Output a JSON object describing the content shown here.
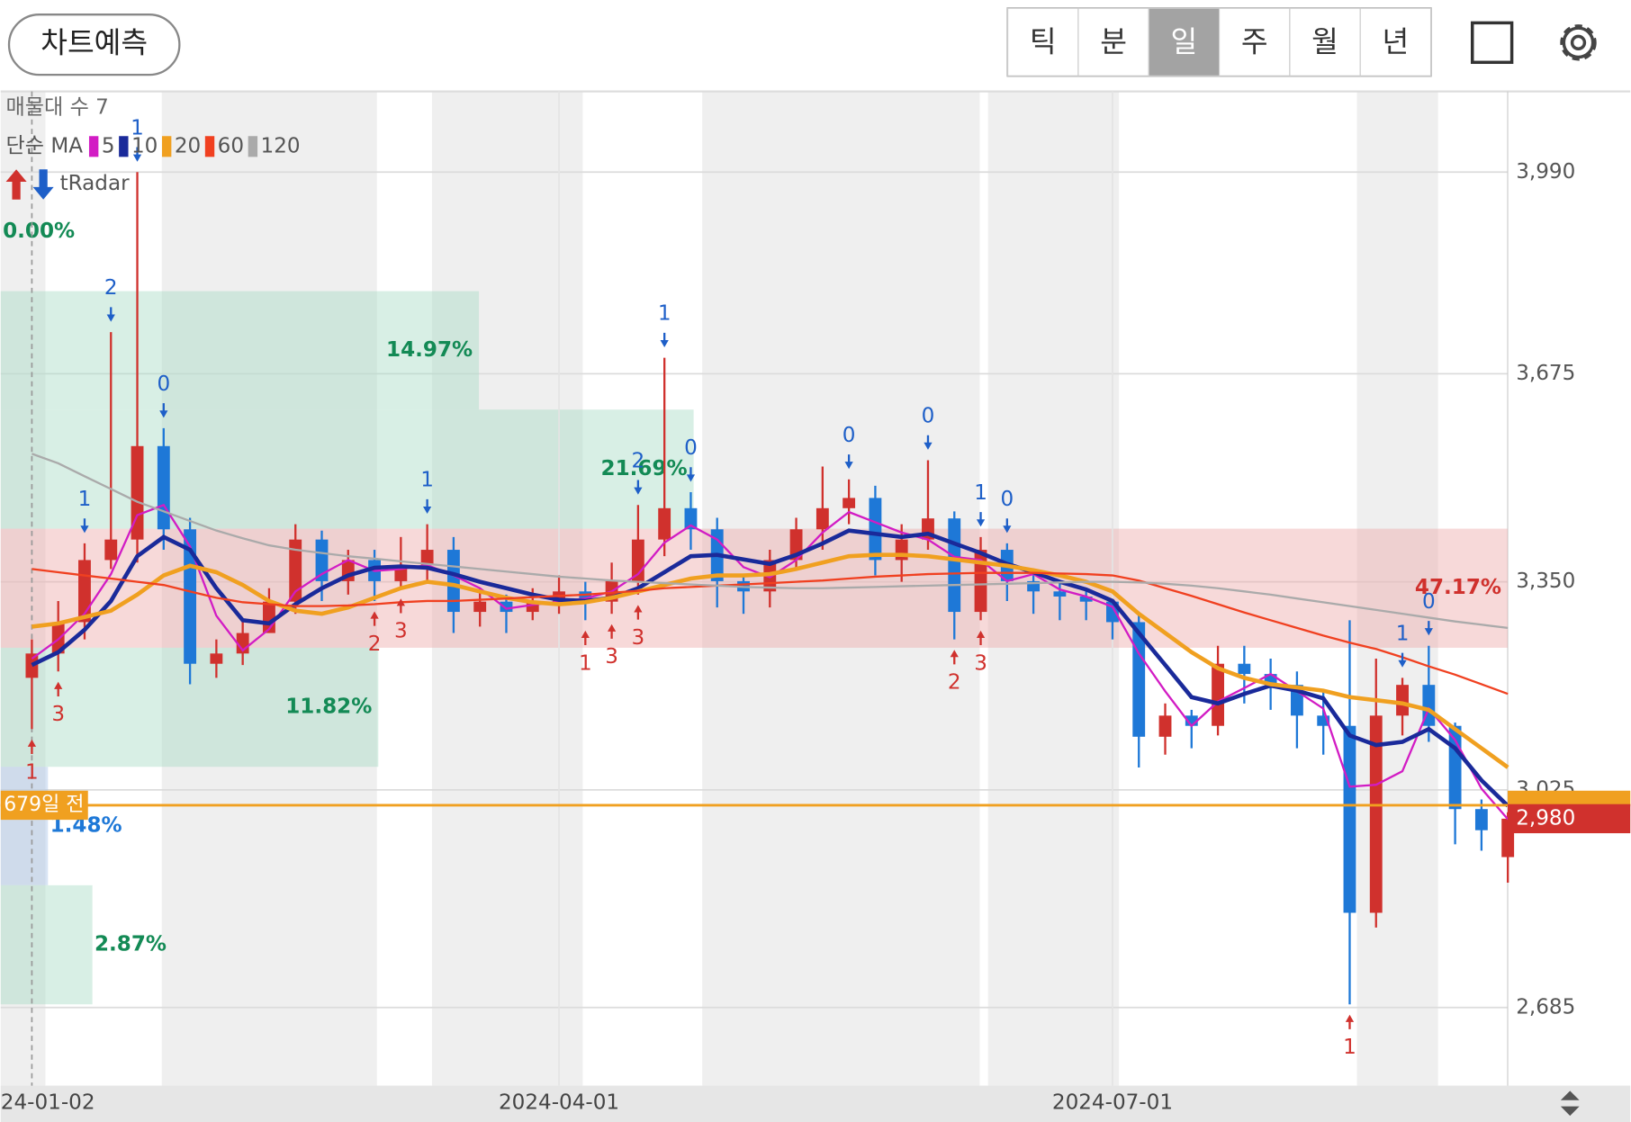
{
  "toolbar": {
    "button": "차트예측",
    "tabs": [
      "틱",
      "분",
      "일",
      "주",
      "월",
      "년"
    ],
    "selected_tab": 2
  },
  "chart_data": {
    "type": "candlestick",
    "categories": [
      "24-01-02",
      null,
      null,
      null,
      null,
      null,
      null,
      null,
      null,
      null,
      null,
      null,
      null,
      null,
      null,
      null,
      null,
      null,
      null,
      null,
      "2024-04-01",
      null,
      null,
      null,
      null,
      null,
      null,
      null,
      null,
      null,
      null,
      null,
      null,
      null,
      null,
      null,
      null,
      null,
      null,
      null,
      null,
      "2024-07-01",
      null,
      null,
      null,
      null,
      null,
      null,
      null,
      null,
      null,
      null,
      null,
      null,
      null,
      null,
      null
    ],
    "open": [
      3200,
      3238,
      3287,
      3384,
      3416,
      3562,
      3432,
      3222,
      3238,
      3270,
      3319,
      3416,
      3351,
      3384,
      3351,
      3376,
      3400,
      3303,
      3319,
      3303,
      3319,
      3335,
      3319,
      3351,
      3416,
      3465,
      3432,
      3351,
      3335,
      3384,
      3432,
      3465,
      3481,
      3384,
      3416,
      3449,
      3303,
      3400,
      3351,
      3335,
      3327,
      3319,
      3287,
      3108,
      3141,
      3125,
      3222,
      3206,
      3189,
      3141,
      3125,
      2833,
      3141,
      3189,
      3125,
      2995,
      2920
    ],
    "high": [
      3260,
      3320,
      3410,
      3740,
      3990,
      3590,
      3450,
      3260,
      3290,
      3340,
      3440,
      3430,
      3400,
      3400,
      3420,
      3440,
      3420,
      3340,
      3330,
      3340,
      3360,
      3350,
      3380,
      3470,
      3700,
      3490,
      3450,
      3360,
      3400,
      3450,
      3530,
      3510,
      3500,
      3440,
      3540,
      3460,
      3420,
      3410,
      3360,
      3350,
      3340,
      3320,
      3300,
      3160,
      3150,
      3250,
      3250,
      3230,
      3210,
      3180,
      3290,
      3230,
      3200,
      3250,
      3130,
      3010,
      2990
    ],
    "low": [
      3120,
      3210,
      3260,
      3370,
      3380,
      3400,
      3190,
      3200,
      3220,
      3270,
      3300,
      3320,
      3330,
      3320,
      3340,
      3350,
      3270,
      3280,
      3270,
      3290,
      3300,
      3290,
      3300,
      3330,
      3390,
      3400,
      3310,
      3300,
      3310,
      3370,
      3400,
      3440,
      3360,
      3350,
      3400,
      3260,
      3290,
      3320,
      3300,
      3290,
      3290,
      3260,
      3060,
      3080,
      3090,
      3110,
      3160,
      3150,
      3090,
      3080,
      2690,
      2810,
      3110,
      3100,
      2940,
      2930,
      2880
    ],
    "close": [
      3238,
      3287,
      3384,
      3416,
      3562,
      3432,
      3222,
      3238,
      3270,
      3319,
      3416,
      3351,
      3384,
      3351,
      3376,
      3400,
      3303,
      3319,
      3303,
      3319,
      3335,
      3319,
      3351,
      3416,
      3465,
      3432,
      3351,
      3335,
      3384,
      3432,
      3465,
      3481,
      3384,
      3416,
      3449,
      3303,
      3400,
      3351,
      3335,
      3327,
      3319,
      3287,
      3108,
      3141,
      3125,
      3222,
      3206,
      3189,
      3141,
      3125,
      2833,
      3141,
      3189,
      3125,
      2995,
      2962,
      2980
    ],
    "up_color": "#d0312d",
    "down_color": "#1e78d7",
    "legend_title": "단순 MA",
    "series": [
      {
        "name": "5",
        "color": "#d21cc4",
        "values": [
          3230,
          3260,
          3300,
          3362,
          3454,
          3470,
          3405,
          3297,
          3243,
          3276,
          3335,
          3362,
          3384,
          3367,
          3370,
          3376,
          3360,
          3340,
          3308,
          3314,
          3319,
          3324,
          3335,
          3362,
          3411,
          3438,
          3416,
          3373,
          3357,
          3384,
          3427,
          3459,
          3443,
          3427,
          3416,
          3389,
          3384,
          3351,
          3362,
          3338,
          3327,
          3311,
          3238,
          3179,
          3125,
          3163,
          3184,
          3206,
          3179,
          3152,
          3030,
          3033,
          3054,
          3152,
          3103,
          3027,
          2979
        ]
      },
      {
        "name": "10",
        "color": "#1a2a9a",
        "values": [
          3220,
          3240,
          3275,
          3320,
          3390,
          3420,
          3400,
          3340,
          3290,
          3285,
          3315,
          3340,
          3360,
          3372,
          3374,
          3372,
          3362,
          3350,
          3340,
          3330,
          3322,
          3320,
          3325,
          3340,
          3365,
          3390,
          3392,
          3385,
          3378,
          3392,
          3410,
          3430,
          3425,
          3420,
          3425,
          3410,
          3395,
          3378,
          3365,
          3350,
          3338,
          3320,
          3270,
          3220,
          3170,
          3160,
          3175,
          3188,
          3180,
          3168,
          3110,
          3095,
          3100,
          3120,
          3090,
          3040,
          3000
        ]
      },
      {
        "name": "20",
        "color": "#f0a020",
        "values": [
          3280,
          3285,
          3295,
          3305,
          3330,
          3360,
          3375,
          3365,
          3345,
          3320,
          3305,
          3300,
          3310,
          3325,
          3340,
          3350,
          3345,
          3335,
          3325,
          3318,
          3315,
          3318,
          3325,
          3335,
          3345,
          3355,
          3360,
          3360,
          3362,
          3370,
          3380,
          3390,
          3392,
          3392,
          3390,
          3385,
          3380,
          3375,
          3368,
          3360,
          3350,
          3335,
          3300,
          3270,
          3240,
          3215,
          3200,
          3190,
          3185,
          3180,
          3170,
          3165,
          3160,
          3150,
          3120,
          3090,
          3060
        ]
      },
      {
        "name": "60",
        "color": "#f04020",
        "values": [
          3370,
          3365,
          3360,
          3355,
          3350,
          3345,
          3335,
          3325,
          3318,
          3315,
          3312,
          3312,
          3313,
          3315,
          3318,
          3320,
          3320,
          3322,
          3324,
          3326,
          3328,
          3330,
          3333,
          3336,
          3340,
          3342,
          3344,
          3346,
          3348,
          3350,
          3352,
          3355,
          3358,
          3360,
          3362,
          3363,
          3364,
          3364,
          3364,
          3363,
          3362,
          3360,
          3352,
          3340,
          3328,
          3315,
          3302,
          3290,
          3278,
          3266,
          3255,
          3245,
          3232,
          3218,
          3205,
          3190,
          3175
        ]
      },
      {
        "name": "120",
        "color": "#aaaaaa",
        "values": [
          3550,
          3535,
          3515,
          3495,
          3475,
          3460,
          3445,
          3430,
          3418,
          3407,
          3400,
          3395,
          3390,
          3386,
          3382,
          3378,
          3374,
          3370,
          3366,
          3362,
          3358,
          3355,
          3352,
          3350,
          3348,
          3346,
          3344,
          3342,
          3341,
          3340,
          3340,
          3341,
          3342,
          3343,
          3344,
          3345,
          3346,
          3347,
          3348,
          3349,
          3350,
          3350,
          3349,
          3347,
          3344,
          3340,
          3335,
          3330,
          3324,
          3318,
          3312,
          3306,
          3300,
          3294,
          3288,
          3283,
          3278
        ]
      }
    ],
    "ylim": [
      2563,
      4116
    ],
    "yticks": [
      {
        "value": 2685,
        "label": "2,685"
      },
      {
        "value": 3025,
        "label": "3,025"
      },
      {
        "value": 3350,
        "label": "3,350"
      },
      {
        "value": 3675,
        "label": "3,675"
      },
      {
        "value": 3990,
        "label": "3,990"
      }
    ],
    "grid": true,
    "volume_profile": {
      "title": "매물대 수 7",
      "edges": [
        3990,
        3804,
        3619,
        3433,
        3247,
        3061,
        2876,
        2690
      ],
      "values": [
        0.0,
        14.97,
        21.69,
        47.17,
        11.82,
        1.48,
        2.87
      ],
      "value_labels": [
        "0.00%",
        "14.97%",
        "21.69%",
        "47.17%",
        "11.82%",
        "1.48%",
        "2.87%"
      ],
      "colors": [
        "#a9dcc6",
        "#a9dcc6",
        "#a9dcc6",
        "#eeaaaa",
        "#a9dcc6",
        "#a9c4e6",
        "#a9dcc6"
      ],
      "label_colors": [
        "#138a55",
        "#138a55",
        "#138a55",
        "#d0312d",
        "#138a55",
        "#1e78d7",
        "#138a55"
      ]
    },
    "indicator": "tRadar",
    "signals": [
      {
        "index": 2,
        "label": "1",
        "direction": "down"
      },
      {
        "index": 3,
        "label": "2",
        "direction": "down"
      },
      {
        "index": 4,
        "label": "1",
        "direction": "down"
      },
      {
        "index": 5,
        "label": "0",
        "direction": "down"
      },
      {
        "index": 15,
        "label": "1",
        "direction": "down"
      },
      {
        "index": 23,
        "label": "2",
        "direction": "down"
      },
      {
        "index": 24,
        "label": "1",
        "direction": "down"
      },
      {
        "index": 25,
        "label": "0",
        "direction": "down"
      },
      {
        "index": 31,
        "label": "0",
        "direction": "down"
      },
      {
        "index": 34,
        "label": "0",
        "direction": "down"
      },
      {
        "index": 36,
        "label": "1",
        "direction": "down"
      },
      {
        "index": 37,
        "label": "0",
        "direction": "down"
      },
      {
        "index": 52,
        "label": "1",
        "direction": "down"
      },
      {
        "index": 53,
        "label": "0",
        "direction": "down"
      },
      {
        "index": 0,
        "label": "1",
        "direction": "up"
      },
      {
        "index": 1,
        "label": "3",
        "direction": "up"
      },
      {
        "index": 13,
        "label": "2",
        "direction": "up"
      },
      {
        "index": 14,
        "label": "3",
        "direction": "up"
      },
      {
        "index": 21,
        "label": "1",
        "direction": "up"
      },
      {
        "index": 22,
        "label": "3",
        "direction": "up"
      },
      {
        "index": 23,
        "label": "3",
        "direction": "up"
      },
      {
        "index": 35,
        "label": "2",
        "direction": "up"
      },
      {
        "index": 36,
        "label": "3",
        "direction": "up"
      },
      {
        "index": 50,
        "label": "1",
        "direction": "up"
      }
    ],
    "reference_line": {
      "label": "679일 전",
      "value": 3001,
      "color": "#f0a020"
    },
    "current_price": {
      "value": 2980,
      "label": "2,980",
      "color": "#d0312d"
    }
  }
}
